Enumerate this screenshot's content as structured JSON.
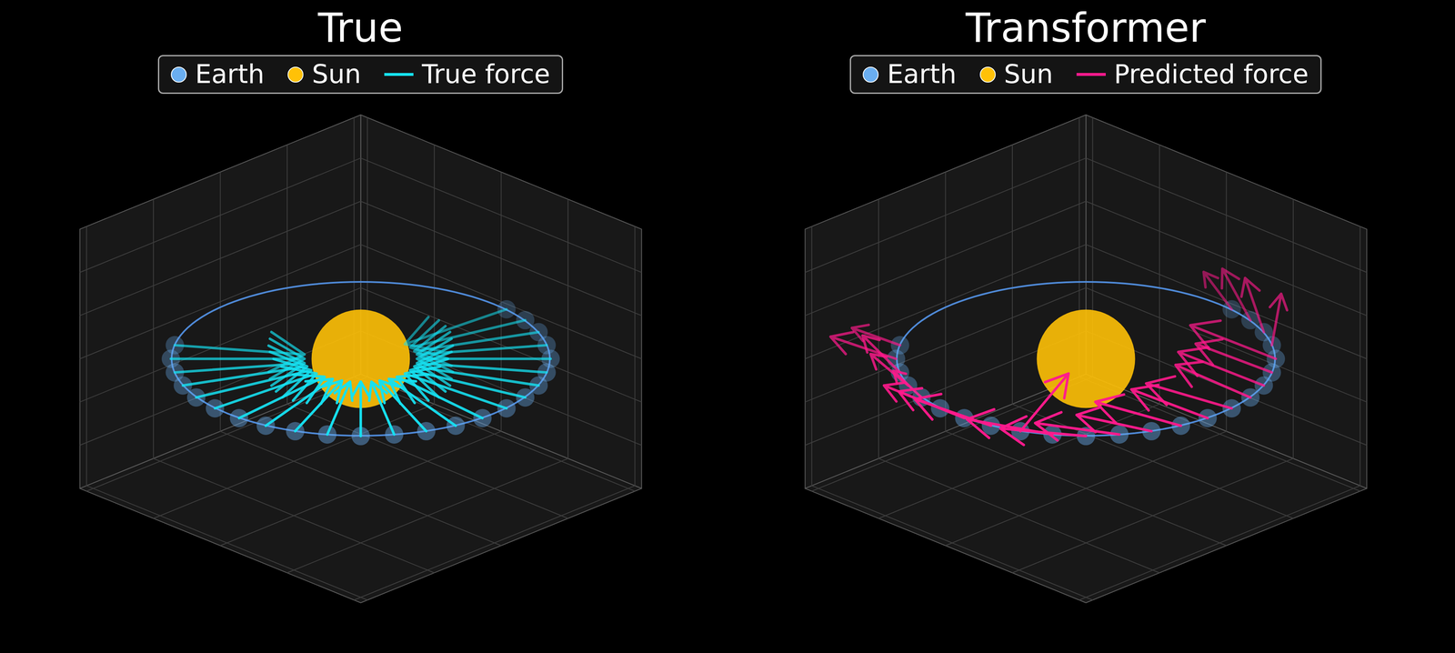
{
  "chart_data": [
    {
      "type": "quiver",
      "title": "True",
      "xlim": [
        -1.05,
        1.05
      ],
      "ylim": [
        -1.05,
        1.05
      ],
      "zlim": [
        -0.75,
        0.75
      ],
      "xticks": [
        -1,
        -0.5,
        0,
        0.5,
        1
      ],
      "yticks": [
        -1,
        -0.5,
        0,
        0.5,
        1
      ],
      "zticks": [
        -0.5,
        -0.25,
        0,
        0.25,
        0.5
      ],
      "tick_labels": false,
      "grid": true,
      "legend": "top",
      "orbit_radius": 1,
      "series": [
        {
          "name": "Earth",
          "type": "scatter",
          "marker": "circle",
          "color": "#6aaef0",
          "x": [
            -0.57,
            -0.71,
            -0.82,
            -0.91,
            -0.97,
            -1,
            -1,
            -0.97,
            -0.91,
            -0.82,
            -0.71,
            -0.57,
            -0.42,
            -0.26,
            -0.09,
            0.09,
            0.26,
            0.42,
            0.57,
            0.71,
            0.82,
            0.91,
            0.97,
            1
          ],
          "y": [
            0.82,
            0.71,
            0.57,
            0.42,
            0.26,
            0.09,
            -0.09,
            -0.26,
            -0.42,
            -0.57,
            -0.71,
            -0.82,
            -0.91,
            -0.97,
            -1,
            -1,
            -0.97,
            -0.91,
            -0.82,
            -0.71,
            -0.57,
            -0.42,
            -0.26,
            -0.09
          ],
          "z": [
            0,
            0,
            0,
            0,
            0,
            0,
            0,
            0,
            0,
            0,
            0,
            0,
            0,
            0,
            0,
            0,
            0,
            0,
            0,
            0,
            0,
            0,
            0,
            0
          ]
        },
        {
          "name": "Sun",
          "type": "scatter",
          "marker": "sphere",
          "color": "#ffc107",
          "x": [
            0
          ],
          "y": [
            0
          ],
          "z": [
            0
          ]
        },
        {
          "name": "True force",
          "type": "quiver",
          "line_style": "solid",
          "color": "#16e0f0",
          "u": [
            0.4,
            0.5,
            0.57,
            0.64,
            0.68,
            0.7,
            0.7,
            0.68,
            0.64,
            0.57,
            0.5,
            0.4,
            0.29,
            0.18,
            0.06,
            -0.06,
            -0.18,
            -0.29,
            -0.4,
            -0.5,
            -0.57,
            -0.64,
            -0.68,
            -0.7
          ],
          "v": [
            -0.57,
            -0.5,
            -0.4,
            -0.29,
            -0.18,
            -0.06,
            0.06,
            0.18,
            0.29,
            0.4,
            0.5,
            0.57,
            0.64,
            0.68,
            0.7,
            0.7,
            0.68,
            0.64,
            0.57,
            0.5,
            0.4,
            0.29,
            0.18,
            0.06
          ],
          "w": [
            0,
            0,
            0,
            0,
            0,
            0,
            0,
            0,
            0,
            0,
            0,
            0,
            0,
            0,
            0,
            0,
            0,
            0,
            0,
            0,
            0,
            0,
            0,
            0
          ]
        }
      ]
    },
    {
      "type": "quiver",
      "title": "Transformer",
      "xlim": [
        -1.05,
        1.05
      ],
      "ylim": [
        -1.05,
        1.05
      ],
      "zlim": [
        -0.75,
        0.75
      ],
      "xticks": [
        -1,
        -0.5,
        0,
        0.5,
        1
      ],
      "yticks": [
        -1,
        -0.5,
        0,
        0.5,
        1
      ],
      "zticks": [
        -0.5,
        -0.25,
        0,
        0.25,
        0.5
      ],
      "tick_labels": false,
      "grid": true,
      "legend": "top",
      "orbit_radius": 1,
      "series": [
        {
          "name": "Earth",
          "type": "scatter",
          "marker": "circle",
          "color": "#6aaef0",
          "x": [
            -0.57,
            -0.71,
            -0.82,
            -0.91,
            -0.97,
            -1,
            -1,
            -0.97,
            -0.91,
            -0.82,
            -0.71,
            -0.57,
            -0.42,
            -0.26,
            -0.09,
            0.09,
            0.26,
            0.42,
            0.57,
            0.71,
            0.82,
            0.91,
            0.97,
            1
          ],
          "y": [
            0.82,
            0.71,
            0.57,
            0.42,
            0.26,
            0.09,
            -0.09,
            -0.26,
            -0.42,
            -0.57,
            -0.71,
            -0.82,
            -0.91,
            -0.97,
            -1,
            -1,
            -0.97,
            -0.91,
            -0.82,
            -0.71,
            -0.57,
            -0.42,
            -0.26,
            -0.09
          ],
          "z": [
            0,
            0,
            0,
            0,
            0,
            0,
            0,
            0,
            0,
            0,
            0,
            0,
            0,
            0,
            0,
            0,
            0,
            0,
            0,
            0,
            0,
            0,
            0,
            0
          ]
        },
        {
          "name": "Sun",
          "type": "scatter",
          "marker": "sphere",
          "color": "#ffc107",
          "x": [
            0
          ],
          "y": [
            0
          ],
          "z": [
            0
          ]
        },
        {
          "name": "Predicted force",
          "type": "quiver",
          "line_style": "solid",
          "color": "#ff1a8c",
          "u": [
            -0.18,
            -0.28,
            0.04,
            0.07,
            0.14,
            0,
            0,
            -0.04,
            0.71,
            -0.18,
            -0.25,
            -0.21,
            -0.21,
            -0.18,
            -0.18,
            -0.25,
            -0.14,
            -0.25,
            -0.18,
            -0.25,
            0.19,
            0.11,
            0.05,
            0
          ],
          "v": [
            0.18,
            0.21,
            0.32,
            0.35,
            0.35,
            0.42,
            0.49,
            0.53,
            0.35,
            0.46,
            0.39,
            0.42,
            0.35,
            0.46,
            0.39,
            0.39,
            0.42,
            0.39,
            0.39,
            0.39,
            0.12,
            0.25,
            0.26,
            0.21
          ],
          "w": [
            0.1,
            0.15,
            0.1,
            0.05,
            0,
            0,
            0,
            0,
            0,
            0,
            0,
            0,
            0.05,
            0.05,
            0.1,
            0.1,
            0.1,
            0.15,
            0.1,
            0.15,
            0.2,
            0.2,
            0.2,
            0.15
          ]
        }
      ]
    }
  ]
}
